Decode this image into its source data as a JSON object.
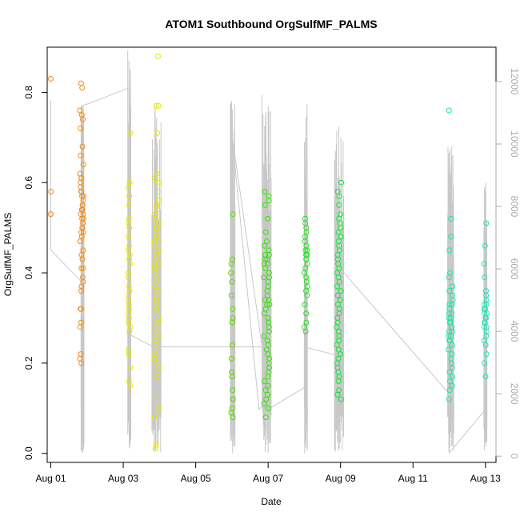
{
  "chart_data": {
    "type": "scatter",
    "title": "ATOM1 Southbound OrgSulfMF_PALMS",
    "xlabel": "Date",
    "ylabel": "OrgSulfMF_PALMS",
    "xlim": [
      "2016-07-31T21:36",
      "2016-08-13T07:00"
    ],
    "ylim": [
      -0.02,
      0.9
    ],
    "x_ticks": [
      "Aug 01",
      "Aug 03",
      "Aug 05",
      "Aug 07",
      "Aug 09",
      "Aug 11",
      "Aug 13"
    ],
    "y_ticks": [
      "0.0",
      "0.2",
      "0.4",
      "0.6",
      "0.8"
    ],
    "y2_range": [
      -200,
      13100
    ],
    "y2_ticks": [
      "0",
      "2000",
      "4000",
      "6000",
      "8000",
      "10000",
      "12000"
    ],
    "right_axis_color": "#aaaaaa",
    "altitude_color": "#c8c8c8",
    "grid": false,
    "point_style": "open-circle",
    "altitude_track": [
      [
        "2016-08-01T00:00",
        11400
      ],
      [
        "2016-08-01T00:00",
        6600
      ],
      [
        "2016-08-01T20:00",
        5600
      ],
      [
        "2016-08-01T21:00",
        100
      ],
      [
        "2016-08-01T20:00",
        11200
      ],
      [
        "2016-08-03T04:00",
        11800
      ],
      [
        "2016-08-03T04:00",
        3900
      ],
      [
        "2016-08-03T20:00",
        3500
      ],
      [
        "2016-08-03T21:00",
        11200
      ],
      [
        "2016-08-04T00:00",
        3500
      ],
      [
        "2016-08-06T20:00",
        3500
      ],
      [
        "2016-08-06T00:00",
        10300
      ],
      [
        "2016-08-06T18:00",
        1500
      ],
      [
        "2016-08-07T00:00",
        1800
      ],
      [
        "2016-08-07T00:00",
        100
      ],
      [
        "2016-08-07T00:00",
        1500
      ],
      [
        "2016-08-08T00:00",
        2200
      ],
      [
        "2016-08-08T00:00",
        3500
      ],
      [
        "2016-08-09T00:00",
        3200
      ],
      [
        "2016-08-09T00:00",
        6000
      ],
      [
        "2016-08-12T00:00",
        2000
      ],
      [
        "2016-08-12T00:00",
        100
      ],
      [
        "2016-08-13T00:00",
        1500
      ]
    ],
    "altitude_spikes": [
      {
        "start": "2016-08-01T20:00",
        "end": "2016-08-01T22:00",
        "low": 100,
        "high": 11300
      },
      {
        "start": "2016-08-03T03:00",
        "end": "2016-08-03T05:00",
        "low": 100,
        "high": 13000
      },
      {
        "start": "2016-08-03T19:00",
        "end": "2016-08-04T01:00",
        "low": 100,
        "high": 11200
      },
      {
        "start": "2016-08-05T23:00",
        "end": "2016-08-06T02:00",
        "low": 100,
        "high": 11900
      },
      {
        "start": "2016-08-06T20:00",
        "end": "2016-08-07T02:00",
        "low": 100,
        "high": 11600
      },
      {
        "start": "2016-08-08T00:00",
        "end": "2016-08-08T02:00",
        "low": 100,
        "high": 11500
      },
      {
        "start": "2016-08-08T20:00",
        "end": "2016-08-09T02:00",
        "low": 100,
        "high": 11300
      },
      {
        "start": "2016-08-11T23:00",
        "end": "2016-08-12T03:00",
        "low": 100,
        "high": 10200
      },
      {
        "start": "2016-08-12T23:00",
        "end": "2016-08-13T01:00",
        "low": 100,
        "high": 8800
      }
    ],
    "clusters": [
      {
        "x": "2016-08-01T00:00",
        "width_h": 0.2,
        "color": "#f08c19",
        "values": [
          0.83,
          0.58,
          0.53,
          0.53
        ]
      },
      {
        "x": "2016-08-01T20:30",
        "width_h": 2.5,
        "color": "#f08c19",
        "values": [
          0.82,
          0.81,
          0.76,
          0.75,
          0.74,
          0.72,
          0.68,
          0.66,
          0.64,
          0.62,
          0.61,
          0.61,
          0.6,
          0.59,
          0.58,
          0.58,
          0.57,
          0.57,
          0.56,
          0.55,
          0.55,
          0.54,
          0.54,
          0.53,
          0.53,
          0.52,
          0.52,
          0.51,
          0.5,
          0.5,
          0.49,
          0.49,
          0.48,
          0.47,
          0.45,
          0.44,
          0.43,
          0.41,
          0.41,
          0.39,
          0.38,
          0.37,
          0.36,
          0.32,
          0.32,
          0.29,
          0.28,
          0.22,
          0.21,
          0.2
        ]
      },
      {
        "x": "2016-08-03T04:00",
        "width_h": 1.5,
        "color": "#e8e600",
        "values": [
          0.71,
          0.6,
          0.59,
          0.57,
          0.55,
          0.52,
          0.51,
          0.5,
          0.48,
          0.46,
          0.45,
          0.44,
          0.43,
          0.42,
          0.4,
          0.39,
          0.37,
          0.36,
          0.35,
          0.34,
          0.33,
          0.32,
          0.31,
          0.3,
          0.29,
          0.28,
          0.27,
          0.23,
          0.22,
          0.19,
          0.16,
          0.15
        ]
      },
      {
        "x": "2016-08-03T22:00",
        "width_h": 3,
        "color": "#e8e600",
        "values": [
          0.88,
          0.77,
          0.77,
          0.71,
          0.62,
          0.61,
          0.6,
          0.58,
          0.56,
          0.55,
          0.54,
          0.53,
          0.52,
          0.51,
          0.5,
          0.5,
          0.49,
          0.48,
          0.47,
          0.47,
          0.46,
          0.45,
          0.44,
          0.43,
          0.42,
          0.42,
          0.41,
          0.4,
          0.39,
          0.38,
          0.37,
          0.36,
          0.35,
          0.34,
          0.33,
          0.32,
          0.31,
          0.3,
          0.29,
          0.28,
          0.27,
          0.26,
          0.25,
          0.24,
          0.23,
          0.22,
          0.21,
          0.2,
          0.19,
          0.17,
          0.12,
          0.1,
          0.08,
          0.02,
          0.01
        ]
      },
      {
        "x": "2016-08-06T00:00",
        "width_h": 1.5,
        "color": "#5cd600",
        "values": [
          0.53,
          0.43,
          0.42,
          0.4,
          0.38,
          0.35,
          0.32,
          0.3,
          0.29,
          0.24,
          0.21,
          0.18,
          0.17,
          0.14,
          0.12,
          0.12,
          0.1,
          0.09,
          0.08
        ]
      },
      {
        "x": "2016-08-06T23:00",
        "width_h": 4,
        "color": "#32e600",
        "values": [
          0.58,
          0.57,
          0.56,
          0.55,
          0.52,
          0.49,
          0.47,
          0.46,
          0.45,
          0.44,
          0.44,
          0.43,
          0.43,
          0.42,
          0.42,
          0.41,
          0.4,
          0.39,
          0.39,
          0.38,
          0.37,
          0.36,
          0.35,
          0.34,
          0.34,
          0.33,
          0.33,
          0.32,
          0.31,
          0.3,
          0.29,
          0.28,
          0.27,
          0.26,
          0.25,
          0.24,
          0.23,
          0.22,
          0.21,
          0.2,
          0.19,
          0.18,
          0.17,
          0.16,
          0.15,
          0.14,
          0.13,
          0.12,
          0.11,
          0.1,
          0.08
        ]
      },
      {
        "x": "2016-08-08T01:00",
        "width_h": 2,
        "color": "#1ee61e",
        "values": [
          0.52,
          0.51,
          0.5,
          0.49,
          0.48,
          0.47,
          0.46,
          0.45,
          0.45,
          0.44,
          0.44,
          0.43,
          0.42,
          0.41,
          0.4,
          0.39,
          0.38,
          0.37,
          0.36,
          0.35,
          0.33,
          0.31,
          0.29,
          0.28,
          0.27
        ]
      },
      {
        "x": "2016-08-08T23:00",
        "width_h": 3,
        "color": "#14e63c",
        "values": [
          0.6,
          0.58,
          0.57,
          0.55,
          0.53,
          0.52,
          0.51,
          0.5,
          0.49,
          0.48,
          0.47,
          0.46,
          0.45,
          0.44,
          0.43,
          0.42,
          0.41,
          0.4,
          0.39,
          0.38,
          0.37,
          0.36,
          0.35,
          0.34,
          0.33,
          0.32,
          0.31,
          0.3,
          0.29,
          0.28,
          0.27,
          0.26,
          0.25,
          0.24,
          0.23,
          0.22,
          0.21,
          0.2,
          0.19,
          0.18,
          0.17,
          0.16,
          0.14,
          0.13,
          0.12
        ]
      },
      {
        "x": "2016-08-12T01:00",
        "width_h": 3,
        "color": "#1ee6a0",
        "values": [
          0.76,
          0.52,
          0.48,
          0.45,
          0.4,
          0.39,
          0.37,
          0.36,
          0.35,
          0.34,
          0.33,
          0.33,
          0.32,
          0.31,
          0.31,
          0.3,
          0.3,
          0.29,
          0.29,
          0.28,
          0.28,
          0.27,
          0.27,
          0.26,
          0.26,
          0.25,
          0.25,
          0.24,
          0.23,
          0.22,
          0.21,
          0.2,
          0.19,
          0.18,
          0.17,
          0.16,
          0.15,
          0.14,
          0.12
        ]
      },
      {
        "x": "2016-08-13T00:00",
        "width_h": 2,
        "color": "#1ee6b4",
        "values": [
          0.51,
          0.46,
          0.42,
          0.39,
          0.36,
          0.35,
          0.34,
          0.33,
          0.33,
          0.32,
          0.32,
          0.31,
          0.31,
          0.3,
          0.3,
          0.29,
          0.29,
          0.28,
          0.28,
          0.27,
          0.26,
          0.25,
          0.24,
          0.22,
          0.2,
          0.17
        ]
      }
    ]
  }
}
